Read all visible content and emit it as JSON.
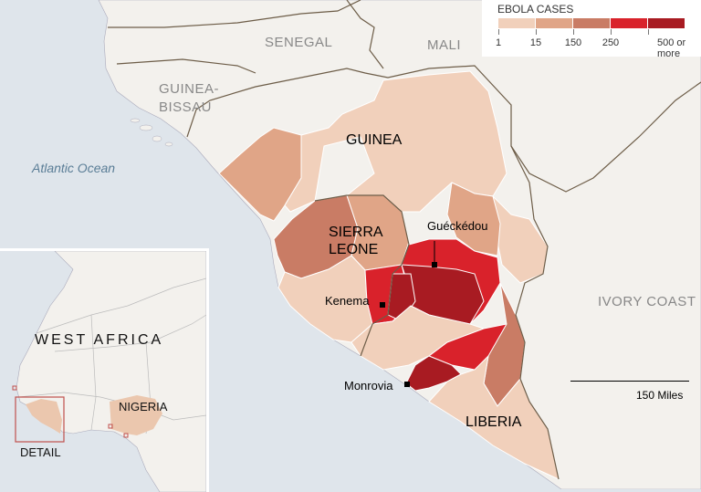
{
  "legend": {
    "title": "EBOLA CASES",
    "bins": [
      {
        "label": "1",
        "color": "#f1d0bb"
      },
      {
        "label": "15",
        "color": "#e0a587"
      },
      {
        "label": "150",
        "color": "#c97c65"
      },
      {
        "label": "250",
        "color": "#d9222b"
      },
      {
        "label": "500 or more",
        "color": "#a81b22"
      }
    ]
  },
  "labels": {
    "senegal": "SENEGAL",
    "mali": "MALI",
    "guinea_bissau_1": "GUINEA-",
    "guinea_bissau_2": "BISSAU",
    "atlantic": "Atlantic Ocean",
    "guinea": "GUINEA",
    "sierra_leone_1": "SIERRA",
    "sierra_leone_2": "LEONE",
    "liberia": "LIBERIA",
    "ivory_coast": "IVORY COAST"
  },
  "cities": {
    "gueckedou": "Guéckédou",
    "kenema": "Kenema",
    "monrovia": "Monrovia"
  },
  "scale": {
    "label": "150 Miles"
  },
  "inset": {
    "title": "WEST AFRICA",
    "nigeria": "NIGERIA",
    "detail": "DETAIL",
    "highlight_color": "#c0504d"
  },
  "colors": {
    "ocean": "#dfe5eb",
    "land": "#f3f1ed",
    "border": "#7a6a55"
  }
}
